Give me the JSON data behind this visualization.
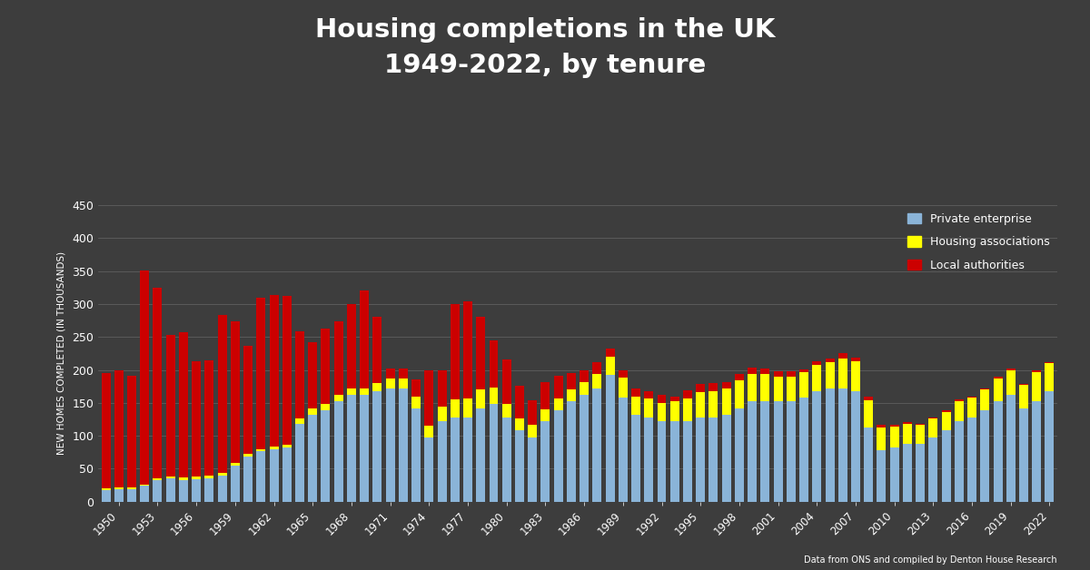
{
  "title": "Housing completions in the UK\n1949-2022, by tenure",
  "ylabel": "NEW HOMES COMPLETED (IN THOUSANDS)",
  "source": "Data from ONS and compiled by Denton House Research",
  "background_color": "#3d3d3d",
  "plot_bg_color": "#3d3d3d",
  "grid_color": "#777777",
  "text_color": "#ffffff",
  "ylim": [
    0,
    450
  ],
  "yticks": [
    0,
    50,
    100,
    150,
    200,
    250,
    300,
    350,
    400,
    450
  ],
  "years": [
    1949,
    1950,
    1951,
    1952,
    1953,
    1954,
    1955,
    1956,
    1957,
    1958,
    1959,
    1960,
    1961,
    1962,
    1963,
    1964,
    1965,
    1966,
    1967,
    1968,
    1969,
    1970,
    1971,
    1972,
    1973,
    1974,
    1975,
    1976,
    1977,
    1978,
    1979,
    1980,
    1981,
    1982,
    1983,
    1984,
    1985,
    1986,
    1987,
    1988,
    1989,
    1990,
    1991,
    1992,
    1993,
    1994,
    1995,
    1996,
    1997,
    1998,
    1999,
    2000,
    2001,
    2002,
    2003,
    2004,
    2005,
    2006,
    2007,
    2008,
    2009,
    2010,
    2011,
    2012,
    2013,
    2014,
    2015,
    2016,
    2017,
    2018,
    2019,
    2020,
    2021,
    2022
  ],
  "private": [
    18,
    19,
    19,
    24,
    32,
    35,
    33,
    34,
    36,
    40,
    55,
    68,
    76,
    80,
    82,
    118,
    132,
    138,
    152,
    162,
    162,
    168,
    172,
    172,
    142,
    97,
    122,
    127,
    128,
    142,
    148,
    128,
    108,
    98,
    122,
    138,
    152,
    162,
    172,
    192,
    158,
    132,
    128,
    122,
    122,
    122,
    128,
    128,
    132,
    142,
    152,
    152,
    152,
    152,
    158,
    168,
    172,
    172,
    168,
    112,
    78,
    82,
    88,
    88,
    98,
    108,
    122,
    128,
    138,
    152,
    162,
    142,
    152,
    168
  ],
  "housing_assoc": [
    2,
    2,
    2,
    2,
    3,
    3,
    4,
    4,
    4,
    4,
    4,
    4,
    4,
    4,
    5,
    8,
    10,
    10,
    10,
    10,
    10,
    12,
    15,
    15,
    18,
    18,
    22,
    28,
    28,
    28,
    25,
    20,
    18,
    18,
    18,
    18,
    18,
    20,
    22,
    28,
    30,
    28,
    28,
    28,
    30,
    35,
    38,
    40,
    40,
    42,
    42,
    42,
    38,
    38,
    38,
    40,
    40,
    45,
    45,
    42,
    35,
    32,
    30,
    28,
    28,
    28,
    30,
    30,
    32,
    35,
    38,
    35,
    45,
    42
  ],
  "local_auth": [
    175,
    178,
    170,
    325,
    290,
    215,
    220,
    175,
    175,
    240,
    215,
    165,
    230,
    230,
    225,
    132,
    100,
    115,
    112,
    128,
    148,
    100,
    15,
    15,
    25,
    85,
    55,
    145,
    148,
    110,
    72,
    68,
    50,
    38,
    42,
    35,
    25,
    18,
    18,
    12,
    12,
    12,
    12,
    12,
    8,
    12,
    12,
    12,
    10,
    10,
    10,
    8,
    8,
    8,
    5,
    5,
    5,
    8,
    5,
    5,
    4,
    3,
    3,
    2,
    2,
    2,
    3,
    2,
    2,
    3,
    2,
    2,
    3,
    2
  ],
  "private_color": "#8ab4d8",
  "housing_assoc_color": "#ffff00",
  "local_auth_color": "#cc0000",
  "legend_private": "Private enterprise",
  "legend_housing_assoc": "Housing associations",
  "legend_local_auth": "Local authorities"
}
